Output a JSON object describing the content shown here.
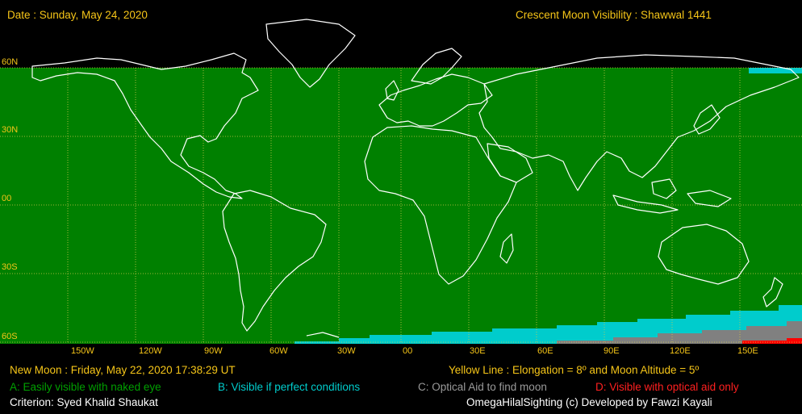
{
  "header": {
    "date_text": "Date : Sunday, May 24, 2020",
    "title_text": "Crescent Moon Visibility : Shawwal  1441"
  },
  "map": {
    "lat_labels": [
      "60N",
      "30N",
      "00",
      "30S",
      "60S"
    ],
    "lon_labels": [
      "150W",
      "120W",
      "90W",
      "60W",
      "30W",
      "00",
      "30E",
      "60E",
      "90E",
      "120E",
      "150E"
    ],
    "colors": {
      "zone_a": "#008000",
      "zone_b": "#00cccc",
      "zone_c": "#808080",
      "zone_d": "#ff0000",
      "grid": "#d4c84a",
      "coast": "#ffffff"
    }
  },
  "footer": {
    "new_moon": "New Moon : Friday, May 22, 2020  17:38:29  UT",
    "yellow_line": "Yellow Line : Elongation = 8º  and Moon Altitude = 5º",
    "legend_a": "A: Easily visible with naked eye",
    "legend_b": "B: Visible if perfect conditions",
    "legend_c": "C: Optical Aid to find moon",
    "legend_d": "D: Visible with optical aid only",
    "criterion": "Criterion: Syed Khalid Shaukat",
    "credit": "OmegaHilalSighting  (c)  Developed by Fawzi Kayali"
  }
}
